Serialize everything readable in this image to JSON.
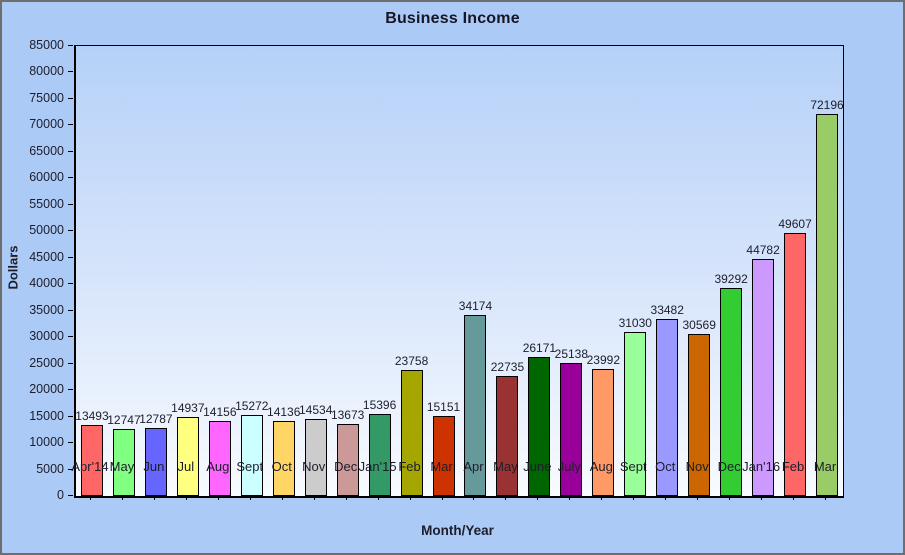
{
  "chart_data": {
    "type": "bar",
    "title": "Business Income",
    "xlabel": "Month/Year",
    "ylabel": "Dollars",
    "ylim": [
      0,
      85000
    ],
    "ytick_step": 5000,
    "grid": false,
    "legend": "none",
    "value_labels_shown": true,
    "categories": [
      "Apr'14",
      "May",
      "Jun",
      "Jul",
      "Aug",
      "Sept",
      "Oct",
      "Nov",
      "Dec",
      "Jan'15",
      "Feb",
      "Mar",
      "Apr",
      "May",
      "June",
      "July",
      "Aug",
      "Sept",
      "Oct",
      "Nov",
      "Dec",
      "Jan'16",
      "Feb",
      "Mar"
    ],
    "values": [
      13493,
      12747,
      12787,
      14937,
      14156,
      15272,
      14136,
      14534,
      13673,
      15396,
      23758,
      15151,
      34174,
      22735,
      26171,
      25138,
      23992,
      31030,
      33482,
      30569,
      39292,
      44782,
      49607,
      72196
    ],
    "bar_colors": [
      "#FF6666",
      "#80FF80",
      "#6666FF",
      "#FFFF80",
      "#FF66FF",
      "#CCFFFF",
      "#FFD666",
      "#CCCCCC",
      "#CC9999",
      "#339966",
      "#A6A600",
      "#CC3300",
      "#669999",
      "#993333",
      "#006600",
      "#990099",
      "#FF9966",
      "#99FF99",
      "#9999FF",
      "#CC6600",
      "#33CC33",
      "#CC99FF",
      "#FF6666",
      "#99CC66"
    ]
  },
  "colors": {
    "window_background": "#ACCAF6",
    "plot_gradient_top": "#B5D1F8",
    "plot_gradient_bottom": "#F8FBFF",
    "bar_border": "#000000",
    "axis_line": "#000000",
    "text": "#1D1D2B",
    "frame_border": "#6E6E6E"
  }
}
